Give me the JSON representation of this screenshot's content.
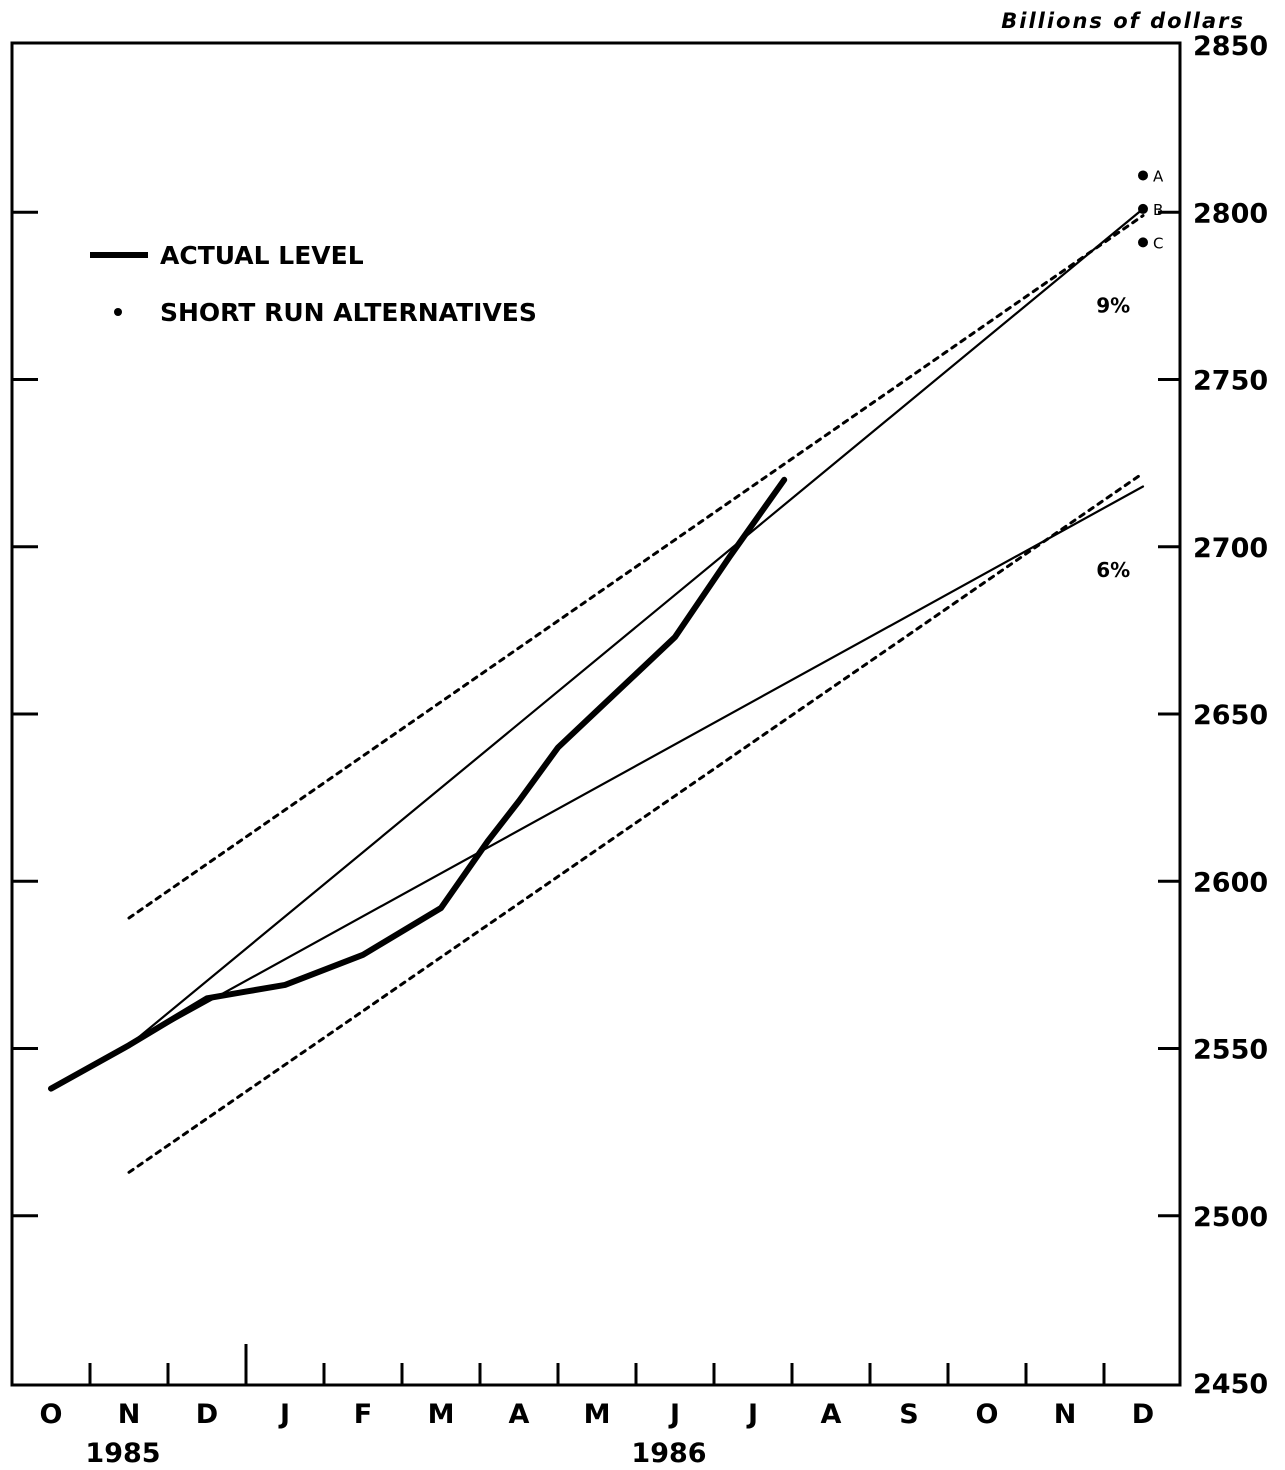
{
  "chart_data": {
    "type": "line",
    "title": "",
    "ylabel": "Billions of dollars",
    "xlabel": "",
    "ylim": [
      2450,
      2850
    ],
    "yticks": [
      2450,
      2500,
      2550,
      2600,
      2650,
      2700,
      2750,
      2800,
      2850
    ],
    "months": [
      "O",
      "N",
      "D",
      "J",
      "F",
      "M",
      "A",
      "M",
      "J",
      "J",
      "A",
      "S",
      "O",
      "N",
      "D"
    ],
    "years": [
      {
        "label": "1985",
        "month_index": 1
      },
      {
        "label": "1986",
        "month_index": 8
      }
    ],
    "legend": {
      "actual_label": "ACTUAL LEVEL",
      "alternatives_label": "SHORT RUN ALTERNATIVES"
    },
    "series": [
      {
        "name": "ACTUAL LEVEL",
        "style": "thick",
        "x": [
          0,
          1,
          2,
          2.5,
          3,
          4,
          5,
          5.6,
          6,
          6.5,
          7,
          7.5,
          8,
          8.7,
          9.4
        ],
        "y": [
          2538,
          2551,
          2565,
          2567,
          2569,
          2578,
          2592,
          2612,
          2624,
          2640,
          2651,
          2662,
          2673,
          2697,
          2720
        ]
      },
      {
        "name": "9% cone upper",
        "style": "thin",
        "x": [
          1,
          14
        ],
        "y": [
          2551,
          2801
        ]
      },
      {
        "name": "6% cone lower",
        "style": "thin",
        "x": [
          1,
          14
        ],
        "y": [
          2551,
          2718
        ]
      },
      {
        "name": "upper band",
        "style": "dotted",
        "x": [
          1,
          14
        ],
        "y": [
          2589,
          2799
        ]
      },
      {
        "name": "lower band",
        "style": "dotted",
        "x": [
          1,
          14
        ],
        "y": [
          2513,
          2722
        ]
      }
    ],
    "alternatives": [
      {
        "label": "A",
        "x": 14,
        "y": 2811
      },
      {
        "label": "B",
        "x": 14,
        "y": 2801
      },
      {
        "label": "C",
        "x": 14,
        "y": 2791
      }
    ],
    "annotations": [
      {
        "text": "9%",
        "x": 13.4,
        "y": 2770
      },
      {
        "text": "6%",
        "x": 13.4,
        "y": 2691
      }
    ]
  }
}
